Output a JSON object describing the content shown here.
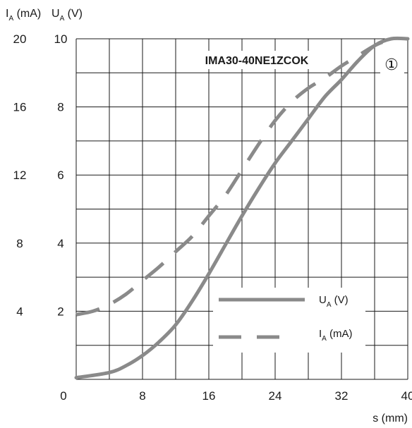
{
  "chart_data": {
    "type": "line",
    "model": "IMA30-40NE1ZCOK",
    "marker": "①",
    "xlabel": "s (mm)",
    "x_ticks": [
      "0",
      "8",
      "16",
      "24",
      "32",
      "40"
    ],
    "xlim": [
      0,
      40
    ],
    "y_left_label": {
      "main": "I",
      "sub": "A",
      "unit": " (mA)"
    },
    "y_right_label": {
      "main": "U",
      "sub": "A",
      "unit": " (V)"
    },
    "y_left_ticks": [
      "4",
      "8",
      "12",
      "16",
      "20"
    ],
    "y_right_ticks": [
      "2",
      "4",
      "6",
      "8",
      "10"
    ],
    "ylim_voltage": [
      0,
      10
    ],
    "ylim_current": [
      0,
      20
    ],
    "grid": true,
    "series": [
      {
        "name": {
          "main": "U",
          "sub": "A",
          "unit": " (V)"
        },
        "axis": "voltage",
        "style": "solid",
        "color": "#8a8a8a",
        "x": [
          0,
          4,
          6,
          8,
          10,
          12,
          14,
          16,
          18,
          20,
          22,
          24,
          26,
          28,
          30,
          32,
          34,
          36,
          38,
          40
        ],
        "y": [
          0.05,
          0.2,
          0.4,
          0.7,
          1.1,
          1.6,
          2.3,
          3.1,
          3.95,
          4.8,
          5.6,
          6.35,
          7.0,
          7.65,
          8.3,
          8.8,
          9.35,
          9.8,
          10.0,
          10.0
        ]
      },
      {
        "name": {
          "main": "I",
          "sub": "A",
          "unit": " (mA)"
        },
        "axis": "current",
        "style": "dashed",
        "color": "#8a8a8a",
        "x": [
          0,
          2,
          4,
          6,
          8,
          10,
          12,
          14,
          16,
          18,
          20,
          22,
          24,
          26,
          28,
          30,
          32,
          34,
          36,
          38
        ],
        "y": [
          3.8,
          4.0,
          4.4,
          5.0,
          5.8,
          6.6,
          7.5,
          8.4,
          9.6,
          10.8,
          12.3,
          13.8,
          15.2,
          16.3,
          17.1,
          17.7,
          18.4,
          19.0,
          19.6,
          20.0
        ]
      }
    ]
  }
}
